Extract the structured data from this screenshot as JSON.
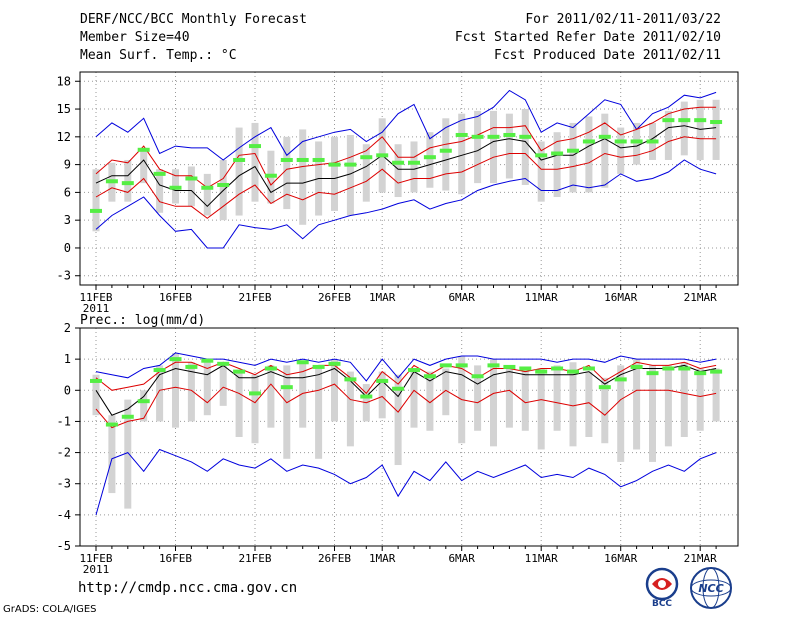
{
  "header": {
    "title": "DERF/NCC/BCC Monthly Forecast",
    "member_size": "Member Size=40",
    "variable": "Mean Surf. Temp.: °C",
    "forecast_period": "For 2011/02/11-2011/03/22",
    "fcst_started": "Fcst Started Refer Date 2011/02/10",
    "fcst_produced": "Fcst Produced Date 2011/02/11"
  },
  "footer": {
    "url": "http://cmdp.ncc.cma.gov.cn",
    "grads": "GrADS: COLA/IGES",
    "logo_left": "BCC",
    "logo_right": "NCC"
  },
  "colors": {
    "envelope": "#0000dd",
    "spread": "#dd0000",
    "mean": "#000000",
    "box": "#d3d3d3",
    "marker": "#55ee44",
    "grid": "#999999"
  },
  "chart_data": [
    {
      "type": "ensemble-boxplot",
      "variable": "Mean Surf. Temp.",
      "unit": "°C",
      "ylim": [
        -4,
        19
      ],
      "yticks": [
        -3,
        0,
        3,
        6,
        9,
        12,
        15,
        18
      ],
      "x_days": 40,
      "x_tick_labels": [
        "11FEB",
        "16FEB",
        "21FEB",
        "26FEB",
        "1MAR",
        "6MAR",
        "11MAR",
        "16MAR",
        "21MAR"
      ],
      "x_tick_days": [
        0,
        5,
        10,
        15,
        18,
        23,
        28,
        33,
        38
      ],
      "year_label": "2011",
      "ens_max": [
        12.0,
        13.5,
        12.5,
        14.0,
        10.2,
        11.0,
        10.8,
        10.8,
        9.5,
        10.8,
        12.0,
        13.0,
        10.0,
        11.5,
        12.0,
        12.5,
        12.8,
        11.5,
        12.5,
        14.5,
        15.5,
        11.8,
        13.0,
        13.8,
        14.2,
        15.2,
        17.0,
        16.0,
        12.5,
        13.5,
        13.0,
        14.5,
        16.0,
        15.5,
        12.8,
        14.5,
        15.2,
        16.5,
        16.2,
        16.8
      ],
      "ens_min": [
        2.0,
        3.5,
        4.5,
        5.5,
        3.5,
        1.8,
        2.0,
        0.0,
        0.0,
        2.5,
        2.2,
        2.0,
        2.5,
        1.0,
        2.5,
        3.0,
        3.5,
        3.8,
        4.2,
        4.8,
        5.2,
        4.2,
        4.8,
        5.2,
        6.2,
        6.8,
        7.2,
        7.5,
        6.2,
        6.2,
        6.8,
        6.5,
        6.8,
        8.0,
        7.2,
        7.5,
        8.2,
        9.5,
        8.5,
        8.0
      ],
      "spread_hi": [
        8.0,
        9.5,
        9.2,
        11.0,
        8.5,
        7.8,
        7.8,
        6.5,
        7.5,
        10.0,
        10.2,
        6.8,
        8.5,
        8.8,
        9.0,
        9.2,
        9.8,
        10.5,
        12.0,
        9.8,
        9.8,
        10.8,
        11.2,
        11.5,
        12.2,
        13.0,
        13.0,
        13.2,
        10.5,
        11.5,
        11.8,
        12.5,
        13.5,
        12.2,
        12.8,
        13.5,
        14.5,
        15.0,
        15.2,
        15.2
      ],
      "mean": [
        7.0,
        7.8,
        7.8,
        9.5,
        6.8,
        6.2,
        6.2,
        4.5,
        6.2,
        7.8,
        8.8,
        6.0,
        7.0,
        7.0,
        7.5,
        7.5,
        8.0,
        8.8,
        10.0,
        8.5,
        8.5,
        9.0,
        9.5,
        10.0,
        10.5,
        11.5,
        11.8,
        11.5,
        9.5,
        10.0,
        10.0,
        11.0,
        11.8,
        10.8,
        11.0,
        11.8,
        13.0,
        13.2,
        12.8,
        13.0
      ],
      "spread_lo": [
        5.5,
        6.5,
        6.0,
        7.5,
        5.0,
        4.5,
        4.5,
        3.2,
        4.5,
        5.8,
        6.8,
        4.8,
        5.8,
        5.2,
        6.0,
        5.8,
        6.5,
        7.2,
        8.5,
        7.0,
        7.5,
        7.5,
        8.0,
        8.2,
        9.0,
        9.8,
        10.2,
        10.2,
        8.5,
        8.5,
        8.8,
        9.2,
        10.2,
        9.8,
        10.0,
        10.5,
        11.5,
        12.0,
        11.8,
        11.8
      ],
      "box_hi": [
        8.5,
        9.2,
        9.5,
        10.8,
        8.5,
        8.5,
        8.8,
        8.0,
        9.5,
        13.0,
        13.5,
        10.5,
        12.0,
        12.8,
        11.5,
        12.0,
        12.2,
        11.2,
        14.0,
        11.2,
        11.5,
        12.5,
        14.0,
        14.5,
        14.8,
        14.8,
        14.5,
        15.0,
        11.5,
        12.5,
        13.5,
        14.2,
        14.5,
        13.0,
        13.5,
        13.5,
        14.8,
        15.8,
        16.0,
        16.0
      ],
      "box_lo": [
        1.8,
        5.0,
        5.0,
        7.0,
        3.8,
        4.8,
        4.5,
        3.5,
        3.0,
        3.5,
        5.0,
        4.8,
        4.2,
        2.5,
        3.5,
        4.0,
        3.5,
        5.0,
        6.0,
        5.5,
        6.0,
        6.5,
        6.2,
        5.8,
        7.0,
        7.0,
        7.5,
        6.8,
        5.0,
        5.5,
        6.0,
        6.0,
        6.5,
        8.0,
        9.0,
        9.5,
        9.5,
        10.0,
        9.5,
        9.5
      ],
      "marker": [
        4.0,
        7.2,
        7.0,
        10.6,
        8.0,
        6.5,
        7.5,
        6.5,
        6.8,
        9.5,
        11.0,
        7.8,
        9.5,
        9.5,
        9.5,
        9.0,
        9.0,
        9.8,
        10.0,
        9.2,
        9.2,
        9.8,
        10.5,
        12.2,
        12.0,
        12.0,
        12.2,
        12.0,
        10.0,
        10.2,
        10.5,
        11.5,
        12.0,
        11.5,
        11.5,
        11.5,
        13.8,
        13.8,
        13.8,
        13.6
      ]
    },
    {
      "type": "ensemble-boxplot",
      "variable": "Prec.: log(mm/d)",
      "unit": "log(mm/d)",
      "ylim": [
        -5,
        2
      ],
      "yticks": [
        -5,
        -4,
        -3,
        -2,
        -1,
        0,
        1,
        2
      ],
      "x_days": 40,
      "x_tick_labels": [
        "11FEB",
        "16FEB",
        "21FEB",
        "26FEB",
        "1MAR",
        "6MAR",
        "11MAR",
        "16MAR",
        "21MAR"
      ],
      "x_tick_days": [
        0,
        5,
        10,
        15,
        18,
        23,
        28,
        33,
        38
      ],
      "year_label": "2011",
      "ens_max": [
        0.6,
        0.5,
        0.4,
        0.7,
        0.8,
        1.2,
        1.1,
        1.0,
        1.0,
        0.9,
        0.8,
        1.0,
        0.9,
        1.0,
        0.9,
        1.0,
        0.9,
        0.3,
        1.0,
        0.4,
        1.0,
        0.8,
        1.0,
        1.1,
        1.1,
        1.0,
        1.0,
        1.0,
        1.0,
        0.9,
        1.0,
        1.0,
        0.9,
        1.1,
        1.0,
        1.0,
        1.0,
        1.0,
        0.9,
        1.0
      ],
      "ens_min": [
        -4.0,
        -2.2,
        -2.0,
        -2.6,
        -1.9,
        -2.1,
        -2.3,
        -2.6,
        -2.2,
        -2.4,
        -2.5,
        -2.2,
        -2.6,
        -2.4,
        -2.5,
        -2.7,
        -3.0,
        -2.8,
        -2.4,
        -3.4,
        -2.6,
        -2.9,
        -2.3,
        -2.9,
        -2.6,
        -2.8,
        -2.6,
        -2.4,
        -2.8,
        -2.7,
        -2.8,
        -2.5,
        -2.7,
        -3.1,
        -2.9,
        -2.6,
        -2.4,
        -2.6,
        -2.2,
        -2.0
      ],
      "spread_hi": [
        0.4,
        0.0,
        0.1,
        0.2,
        0.6,
        0.9,
        0.9,
        0.7,
        0.9,
        0.7,
        0.5,
        0.8,
        0.5,
        0.6,
        0.8,
        0.8,
        0.4,
        -0.1,
        0.6,
        0.2,
        0.8,
        0.5,
        0.8,
        0.7,
        0.4,
        0.7,
        0.7,
        0.6,
        0.7,
        0.7,
        0.6,
        0.8,
        0.3,
        0.6,
        0.9,
        0.8,
        0.8,
        0.9,
        0.7,
        0.8
      ],
      "mean": [
        0.0,
        -0.8,
        -0.6,
        -0.2,
        0.5,
        0.7,
        0.6,
        0.5,
        0.8,
        0.4,
        0.4,
        0.6,
        0.4,
        0.4,
        0.5,
        0.7,
        0.3,
        -0.2,
        0.3,
        -0.2,
        0.6,
        0.3,
        0.6,
        0.5,
        0.2,
        0.5,
        0.6,
        0.5,
        0.5,
        0.5,
        0.5,
        0.6,
        0.2,
        0.5,
        0.7,
        0.7,
        0.7,
        0.8,
        0.6,
        0.7
      ],
      "spread_lo": [
        -0.6,
        -1.2,
        -1.0,
        -0.9,
        0.0,
        0.1,
        0.0,
        -0.4,
        0.1,
        -0.1,
        -0.4,
        0.2,
        -0.4,
        -0.1,
        0.0,
        0.2,
        -0.3,
        -0.4,
        -0.2,
        -0.7,
        0.0,
        -0.4,
        0.0,
        -0.3,
        -0.4,
        -0.1,
        0.0,
        -0.4,
        -0.3,
        -0.4,
        -0.5,
        -0.4,
        -0.8,
        -0.3,
        0.0,
        0.0,
        0.0,
        -0.1,
        -0.2,
        -0.1
      ],
      "box_hi": [
        0.5,
        -0.8,
        -0.3,
        0.0,
        0.8,
        1.2,
        0.9,
        1.0,
        0.9,
        0.6,
        0.5,
        0.8,
        0.8,
        0.9,
        0.8,
        1.0,
        0.6,
        0.2,
        0.6,
        0.5,
        0.7,
        0.6,
        0.7,
        1.1,
        0.8,
        1.0,
        0.7,
        0.7,
        0.7,
        0.8,
        0.9,
        0.6,
        0.4,
        0.8,
        1.0,
        0.8,
        0.8,
        0.9,
        0.7,
        0.7
      ],
      "box_lo": [
        -0.8,
        -3.3,
        -3.8,
        -1.0,
        -1.0,
        -1.2,
        -1.0,
        -0.8,
        -0.5,
        -1.5,
        -1.7,
        -1.2,
        -2.2,
        -1.2,
        -2.2,
        -1.0,
        -1.8,
        -1.0,
        -0.9,
        -2.4,
        -1.2,
        -1.3,
        -0.8,
        -1.7,
        -1.3,
        -1.8,
        -1.2,
        -1.3,
        -1.9,
        -1.3,
        -1.8,
        -1.5,
        -1.7,
        -2.3,
        -1.9,
        -2.3,
        -1.8,
        -1.5,
        -1.3,
        -1.0
      ],
      "marker": [
        0.3,
        -1.1,
        -0.85,
        -0.35,
        0.65,
        1.0,
        0.75,
        0.95,
        0.85,
        0.6,
        -0.1,
        0.7,
        0.1,
        0.9,
        0.75,
        0.85,
        0.35,
        -0.2,
        0.3,
        0.05,
        0.65,
        0.45,
        0.8,
        0.8,
        0.45,
        0.8,
        0.75,
        0.7,
        0.6,
        0.7,
        0.6,
        0.7,
        0.1,
        0.35,
        0.75,
        0.55,
        0.7,
        0.7,
        0.55,
        0.6
      ]
    }
  ]
}
